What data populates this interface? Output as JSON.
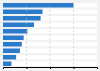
{
  "chart_data": {
    "type": "bar",
    "orientation": "horizontal",
    "categories": [
      null,
      null,
      null,
      null,
      null,
      null,
      null,
      null,
      null,
      null
    ],
    "values": [
      75,
      42,
      40,
      33,
      26,
      22,
      20,
      18,
      14,
      9
    ],
    "color": "#2b7bcc",
    "xlim": [
      0,
      100
    ],
    "xticks": [
      25,
      50,
      75
    ],
    "grid": true,
    "tick_labels": false
  }
}
